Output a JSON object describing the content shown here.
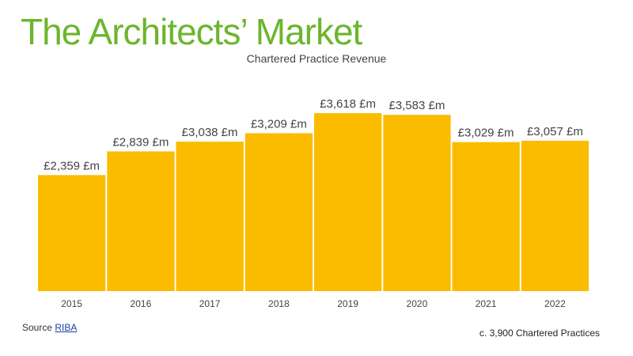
{
  "title": "The Architects’ Market",
  "subtitle": "Chartered Practice Revenue",
  "colors": {
    "title": "#6cb52d",
    "bar": "#fbbc00"
  },
  "chart_data": {
    "type": "bar",
    "title": "Chartered Practice Revenue",
    "categories": [
      "2015",
      "2016",
      "2017",
      "2018",
      "2019",
      "2020",
      "2021",
      "2022"
    ],
    "values": [
      2359,
      2839,
      3038,
      3209,
      3618,
      3583,
      3029,
      3057
    ],
    "data_labels": [
      "£2,359 £m",
      "£2,839 £m",
      "£3,038 £m",
      "£3,209 £m",
      "£3,618 £m",
      "£3,583 £m",
      "£3,029 £m",
      "£3,057 £m"
    ],
    "unit": "£m",
    "xlabel": "",
    "ylabel": "",
    "ylim": [
      0,
      3618
    ],
    "grid": false,
    "legend": "none"
  },
  "source": {
    "prefix": "Source",
    "link_text": "RIBA"
  },
  "footnote": "c. 3,900 Chartered Practices"
}
